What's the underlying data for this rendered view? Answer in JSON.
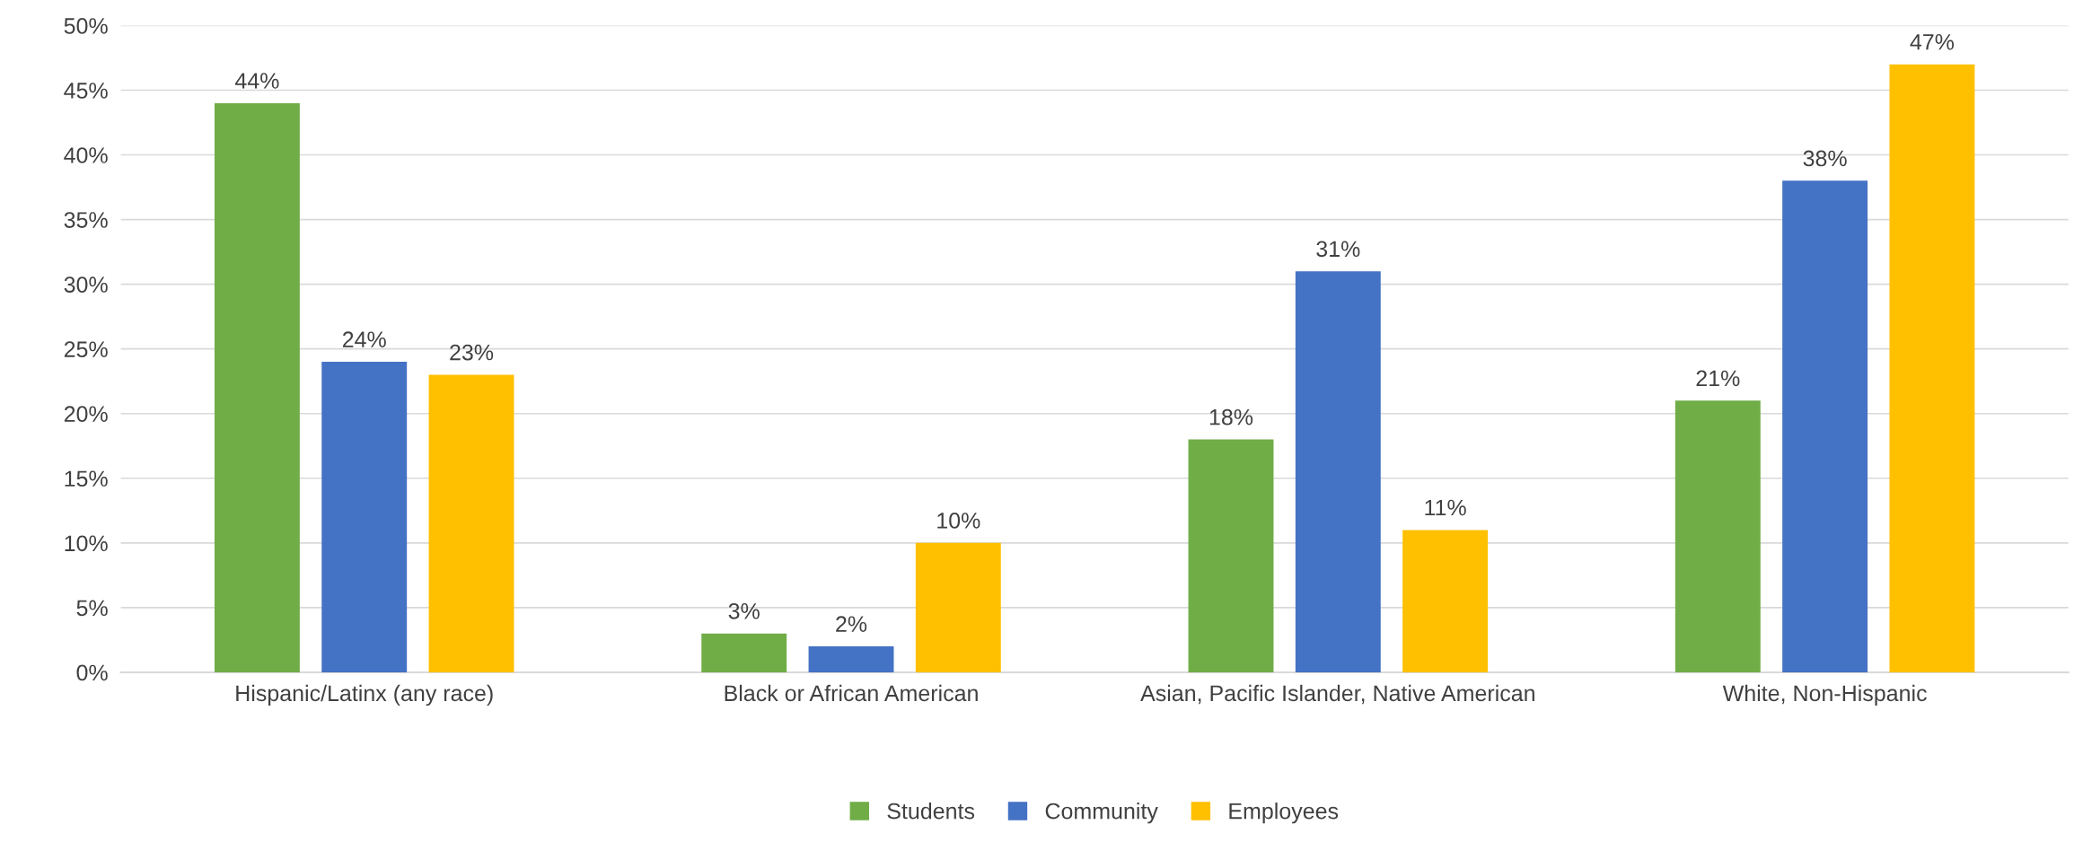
{
  "chart_data": {
    "type": "bar",
    "categories": [
      "Hispanic/Latinx (any race)",
      "Black or African American",
      "Asian, Pacific Islander, Native American",
      "White, Non-Hispanic"
    ],
    "series": [
      {
        "name": "Students",
        "color": "#70ad47",
        "values": [
          44,
          3,
          18,
          21
        ],
        "value_labels": [
          "44%",
          "3%",
          "18%",
          "21%"
        ]
      },
      {
        "name": "Community",
        "color": "#4472c4",
        "values": [
          24,
          2,
          31,
          38
        ],
        "value_labels": [
          "24%",
          "2%",
          "31%",
          "38%"
        ]
      },
      {
        "name": "Employees",
        "color": "#ffc000",
        "values": [
          23,
          10,
          11,
          47
        ],
        "value_labels": [
          "23%",
          "10%",
          "11%",
          "47%"
        ]
      }
    ],
    "ylim": [
      0,
      50
    ],
    "yticks": [
      {
        "value": 0,
        "label": "0%"
      },
      {
        "value": 5,
        "label": "5%"
      },
      {
        "value": 10,
        "label": "10%"
      },
      {
        "value": 15,
        "label": "15%"
      },
      {
        "value": 20,
        "label": "20%"
      },
      {
        "value": 25,
        "label": "25%"
      },
      {
        "value": 30,
        "label": "30%"
      },
      {
        "value": 35,
        "label": "35%"
      },
      {
        "value": 40,
        "label": "40%"
      },
      {
        "value": 45,
        "label": "45%"
      },
      {
        "value": 50,
        "label": "50%"
      }
    ],
    "grid": "y",
    "legend": "bottom"
  }
}
